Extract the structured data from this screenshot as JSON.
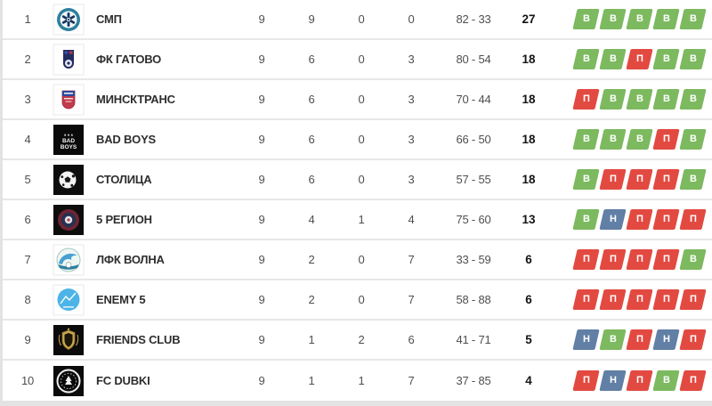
{
  "colors": {
    "win_badge": "#7cb95f",
    "loss_badge": "#e24a41",
    "draw_badge": "#627fa5",
    "badge_text": "#ffffff",
    "team_text": "#2e2e2e",
    "numbers_text": "#4f4f4f",
    "points_text": "#141414",
    "row_background": "#ffffff",
    "separator": "#e7e7e7",
    "page_background": "#e3e3e3"
  },
  "table": {
    "rows": [
      {
        "position": "1",
        "team": "СМП",
        "logo": "smp",
        "played": "9",
        "wins": "9",
        "draws": "0",
        "losses": "0",
        "goals": "82 - 33",
        "points": "27",
        "form": [
          {
            "letter": "В",
            "result": "win"
          },
          {
            "letter": "В",
            "result": "win"
          },
          {
            "letter": "В",
            "result": "win"
          },
          {
            "letter": "В",
            "result": "win"
          },
          {
            "letter": "В",
            "result": "win"
          }
        ]
      },
      {
        "position": "2",
        "team": "ФК ГАТОВО",
        "logo": "gatovo",
        "played": "9",
        "wins": "6",
        "draws": "0",
        "losses": "3",
        "goals": "80 - 54",
        "points": "18",
        "form": [
          {
            "letter": "В",
            "result": "win"
          },
          {
            "letter": "В",
            "result": "win"
          },
          {
            "letter": "П",
            "result": "loss"
          },
          {
            "letter": "В",
            "result": "win"
          },
          {
            "letter": "В",
            "result": "win"
          }
        ]
      },
      {
        "position": "3",
        "team": "МИНСКТРАНС",
        "logo": "minsktrans",
        "played": "9",
        "wins": "6",
        "draws": "0",
        "losses": "3",
        "goals": "70 - 44",
        "points": "18",
        "form": [
          {
            "letter": "П",
            "result": "loss"
          },
          {
            "letter": "В",
            "result": "win"
          },
          {
            "letter": "В",
            "result": "win"
          },
          {
            "letter": "В",
            "result": "win"
          },
          {
            "letter": "В",
            "result": "win"
          }
        ]
      },
      {
        "position": "4",
        "team": "BAD BOYS",
        "logo": "badboys",
        "played": "9",
        "wins": "6",
        "draws": "0",
        "losses": "3",
        "goals": "66 - 50",
        "points": "18",
        "form": [
          {
            "letter": "В",
            "result": "win"
          },
          {
            "letter": "В",
            "result": "win"
          },
          {
            "letter": "В",
            "result": "win"
          },
          {
            "letter": "П",
            "result": "loss"
          },
          {
            "letter": "В",
            "result": "win"
          }
        ]
      },
      {
        "position": "5",
        "team": "СТОЛИЦА",
        "logo": "stolitsa",
        "played": "9",
        "wins": "6",
        "draws": "0",
        "losses": "3",
        "goals": "57 - 55",
        "points": "18",
        "form": [
          {
            "letter": "В",
            "result": "win"
          },
          {
            "letter": "П",
            "result": "loss"
          },
          {
            "letter": "П",
            "result": "loss"
          },
          {
            "letter": "П",
            "result": "loss"
          },
          {
            "letter": "В",
            "result": "win"
          }
        ]
      },
      {
        "position": "6",
        "team": "5 РЕГИОН",
        "logo": "region5",
        "played": "9",
        "wins": "4",
        "draws": "1",
        "losses": "4",
        "goals": "75 - 60",
        "points": "13",
        "form": [
          {
            "letter": "В",
            "result": "win"
          },
          {
            "letter": "Н",
            "result": "draw"
          },
          {
            "letter": "П",
            "result": "loss"
          },
          {
            "letter": "П",
            "result": "loss"
          },
          {
            "letter": "П",
            "result": "loss"
          }
        ]
      },
      {
        "position": "7",
        "team": "ЛФК ВОЛНА",
        "logo": "volna",
        "played": "9",
        "wins": "2",
        "draws": "0",
        "losses": "7",
        "goals": "33 - 59",
        "points": "6",
        "form": [
          {
            "letter": "П",
            "result": "loss"
          },
          {
            "letter": "П",
            "result": "loss"
          },
          {
            "letter": "П",
            "result": "loss"
          },
          {
            "letter": "П",
            "result": "loss"
          },
          {
            "letter": "В",
            "result": "win"
          }
        ]
      },
      {
        "position": "8",
        "team": "ENEMY 5",
        "logo": "enemy5",
        "played": "9",
        "wins": "2",
        "draws": "0",
        "losses": "7",
        "goals": "58 - 88",
        "points": "6",
        "form": [
          {
            "letter": "П",
            "result": "loss"
          },
          {
            "letter": "П",
            "result": "loss"
          },
          {
            "letter": "П",
            "result": "loss"
          },
          {
            "letter": "П",
            "result": "loss"
          },
          {
            "letter": "П",
            "result": "loss"
          }
        ]
      },
      {
        "position": "9",
        "team": "FRIENDS CLUB",
        "logo": "friends",
        "played": "9",
        "wins": "1",
        "draws": "2",
        "losses": "6",
        "goals": "41 - 71",
        "points": "5",
        "form": [
          {
            "letter": "Н",
            "result": "draw"
          },
          {
            "letter": "В",
            "result": "win"
          },
          {
            "letter": "П",
            "result": "loss"
          },
          {
            "letter": "Н",
            "result": "draw"
          },
          {
            "letter": "П",
            "result": "loss"
          }
        ]
      },
      {
        "position": "10",
        "team": "FC DUBKI",
        "logo": "dubki",
        "played": "9",
        "wins": "1",
        "draws": "1",
        "losses": "7",
        "goals": "37 - 85",
        "points": "4",
        "form": [
          {
            "letter": "П",
            "result": "loss"
          },
          {
            "letter": "Н",
            "result": "draw"
          },
          {
            "letter": "П",
            "result": "loss"
          },
          {
            "letter": "В",
            "result": "win"
          },
          {
            "letter": "П",
            "result": "loss"
          }
        ]
      }
    ]
  }
}
